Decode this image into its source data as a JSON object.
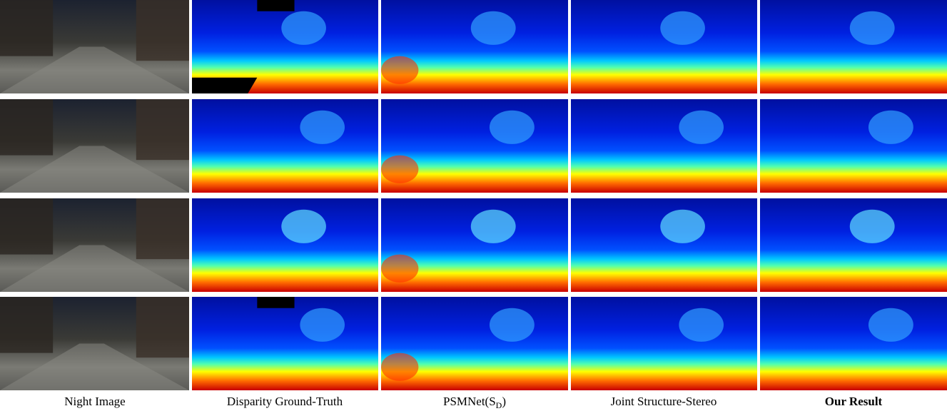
{
  "figure": {
    "columns": [
      {
        "label": "Night Image"
      },
      {
        "label": "Disparity Ground-Truth"
      },
      {
        "label": {
          "text": "PSMNet(S",
          "sub": "D",
          "tail": ")"
        }
      },
      {
        "label": "Joint Structure-Stereo"
      },
      {
        "label": "Our Result"
      }
    ]
  }
}
